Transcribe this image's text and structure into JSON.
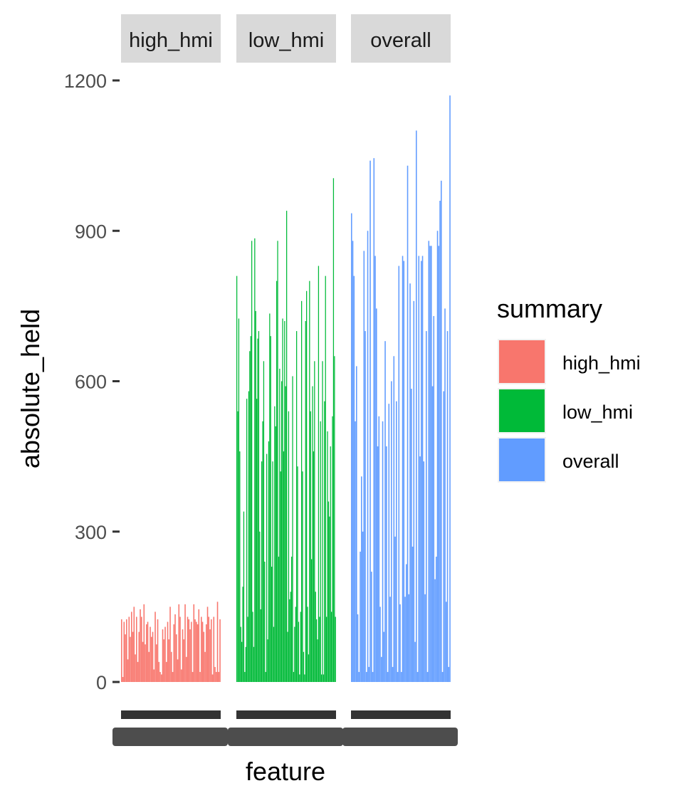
{
  "chart_data": {
    "type": "bar",
    "facet_by": "summary",
    "xlabel": "feature",
    "ylabel": "absolute_held",
    "ylim": [
      0,
      1200
    ],
    "y_ticks": [
      0,
      300,
      600,
      900,
      1200
    ],
    "y_tick_labels": [
      "0",
      "300",
      "600",
      "900",
      "1200"
    ],
    "grid": false,
    "legend_title": "summary",
    "legend_position": "right",
    "panels": [
      "high_hmi",
      "low_hmi",
      "overall"
    ],
    "series": [
      {
        "name": "high_hmi",
        "color": "#F8766D",
        "values": [
          125,
          10,
          120,
          95,
          125,
          45,
          130,
          90,
          140,
          100,
          150,
          55,
          130,
          40,
          100,
          145,
          130,
          80,
          155,
          75,
          115,
          120,
          60,
          110,
          90,
          100,
          25,
          140,
          75,
          125,
          40,
          20,
          15,
          105,
          85,
          110,
          40,
          120,
          85,
          150,
          60,
          20,
          115,
          135,
          95,
          45,
          155,
          130,
          25,
          105,
          85,
          155,
          50,
          130,
          125,
          105,
          120,
          20,
          155,
          125,
          120,
          115,
          145,
          20,
          130,
          120,
          100,
          60,
          115,
          150,
          130,
          105,
          125,
          15,
          130,
          30,
          20,
          160,
          20,
          125
        ]
      },
      {
        "name": "low_hmi",
        "color": "#00BA38",
        "values": [
          810,
          540,
          725,
          460,
          110,
          80,
          190,
          340,
          20,
          70,
          565,
          130,
          580,
          660,
          690,
          880,
          140,
          70,
          885,
          740,
          565,
          685,
          700,
          300,
          145,
          440,
          520,
          640,
          240,
          20,
          455,
          85,
          480,
          735,
          690,
          230,
          440,
          110,
          550,
          510,
          800,
          880,
          250,
          625,
          420,
          600,
          725,
          460,
          720,
          590,
          940,
          100,
          540,
          165,
          180,
          250,
          610,
          20,
          110,
          150,
          700,
          430,
          120,
          15,
          140,
          760,
          420,
          60,
          15,
          720,
          780,
          150,
          55,
          800,
          540,
          245,
          590,
          460,
          640,
          180,
          125,
          85,
          830,
          130,
          520,
          15,
          640,
          15,
          560,
          810,
          130,
          500,
          360,
          330,
          470,
          140,
          530,
          1005,
          650,
          130
        ]
      },
      {
        "name": "overall",
        "color": "#619CFF",
        "values": [
          935,
          880,
          810,
          520,
          630,
          135,
          20,
          260,
          410,
          300,
          860,
          700,
          20,
          900,
          30,
          1040,
          220,
          20,
          1045,
          850,
          745,
          470,
          530,
          150,
          50,
          520,
          100,
          680,
          470,
          20,
          555,
          170,
          600,
          30,
          650,
          290,
          560,
          20,
          830,
          155,
          20,
          850,
          840,
          170,
          235,
          1030,
          175,
          795,
          585,
          270,
          760,
          80,
          1100,
          20,
          850,
          450,
          840,
          850,
          440,
          175,
          700,
          20,
          880,
          870,
          870,
          590,
          730,
          205,
          250,
          900,
          870,
          960,
          1000,
          20,
          580,
          745,
          160,
          700,
          30,
          1170
        ]
      }
    ]
  }
}
